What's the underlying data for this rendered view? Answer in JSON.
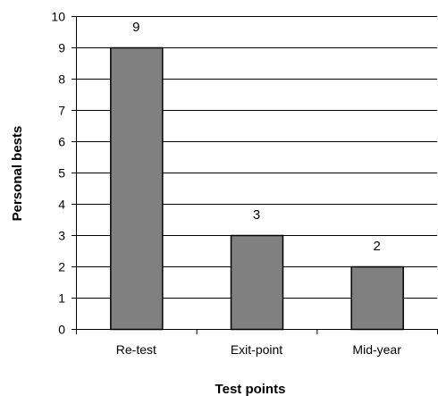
{
  "chart_data": {
    "type": "bar",
    "categories": [
      "Re-test",
      "Exit-point",
      "Mid-year"
    ],
    "values": [
      9,
      3,
      2
    ],
    "data_labels": [
      "9",
      "3",
      "2"
    ],
    "xlabel": "Test points",
    "ylabel": "Personal bests",
    "ylim": [
      0,
      10
    ],
    "yticks": [
      "0",
      "1",
      "2",
      "3",
      "4",
      "5",
      "6",
      "7",
      "8",
      "9",
      "10"
    ],
    "grid": "horizontal",
    "legend": "none",
    "colors": {
      "bar_fill": "#808080",
      "bar_stroke": "#000000",
      "gridline": "#000000",
      "axis": "#000000"
    }
  }
}
